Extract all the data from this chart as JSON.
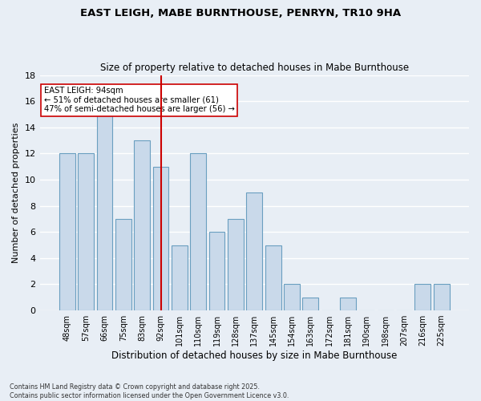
{
  "title1": "EAST LEIGH, MABE BURNTHOUSE, PENRYN, TR10 9HA",
  "title2": "Size of property relative to detached houses in Mabe Burnthouse",
  "xlabel": "Distribution of detached houses by size in Mabe Burnthouse",
  "ylabel": "Number of detached properties",
  "categories": [
    "48sqm",
    "57sqm",
    "66sqm",
    "75sqm",
    "83sqm",
    "92sqm",
    "101sqm",
    "110sqm",
    "119sqm",
    "128sqm",
    "137sqm",
    "145sqm",
    "154sqm",
    "163sqm",
    "172sqm",
    "181sqm",
    "190sqm",
    "198sqm",
    "207sqm",
    "216sqm",
    "225sqm"
  ],
  "values": [
    12,
    12,
    15,
    7,
    13,
    11,
    5,
    12,
    6,
    7,
    9,
    5,
    2,
    1,
    0,
    1,
    0,
    0,
    0,
    2,
    2
  ],
  "bar_color": "#c9d9ea",
  "bar_edge_color": "#6a9fc0",
  "background_color": "#e8eef5",
  "gridcolor": "#ffffff",
  "vline_x_index": 5,
  "vline_color": "#cc0000",
  "annotation_text": "EAST LEIGH: 94sqm\n← 51% of detached houses are smaller (61)\n47% of semi-detached houses are larger (56) →",
  "annotation_box_color": "#ffffff",
  "annotation_box_edge": "#cc0000",
  "ylim": [
    0,
    18
  ],
  "yticks": [
    0,
    2,
    4,
    6,
    8,
    10,
    12,
    14,
    16,
    18
  ],
  "footnote": "Contains HM Land Registry data © Crown copyright and database right 2025.\nContains public sector information licensed under the Open Government Licence v3.0."
}
